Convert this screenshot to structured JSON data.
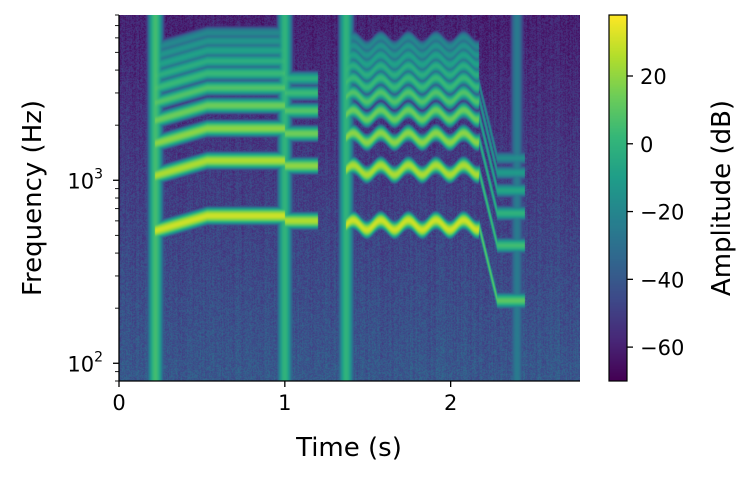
{
  "chart_data": {
    "type": "heatmap",
    "title": "",
    "xlabel": "Time (s)",
    "ylabel": "Frequency (Hz)",
    "xlim": [
      0,
      2.78
    ],
    "ylim": [
      80,
      8000
    ],
    "y_scale": "log",
    "x_ticks": [
      {
        "value": 0,
        "label": "0"
      },
      {
        "value": 1,
        "label": "1"
      },
      {
        "value": 2,
        "label": "2"
      }
    ],
    "y_ticks": [
      {
        "value": 100,
        "base": "10",
        "exp": "2"
      },
      {
        "value": 1000,
        "base": "10",
        "exp": "3"
      }
    ],
    "colorbar": {
      "label": "Amplitude (dB)",
      "colormap": "viridis",
      "range": [
        -70,
        38
      ],
      "ticks": [
        {
          "value": 20,
          "label": "20"
        },
        {
          "value": 0,
          "label": "0"
        },
        {
          "value": -20,
          "label": "−20"
        },
        {
          "value": -40,
          "label": "−40"
        },
        {
          "value": -60,
          "label": "−60"
        }
      ]
    },
    "background_level_db": -55,
    "onsets": [
      {
        "t": 0.22,
        "level_db": 5
      },
      {
        "t": 1.0,
        "level_db": 0
      },
      {
        "t": 1.37,
        "level_db": 0
      },
      {
        "t": 2.4,
        "level_db": -25
      }
    ],
    "notes": [
      {
        "t0": 0.22,
        "t1": 1.0,
        "f_start": 530,
        "f_end": 640,
        "vibrato": 0,
        "fundamental_db": 30,
        "harmonics": 10
      },
      {
        "t0": 1.0,
        "t1": 1.2,
        "f_start": 600,
        "f_end": 600,
        "vibrato": 0,
        "fundamental_db": 25,
        "harmonics": 6
      },
      {
        "t0": 1.37,
        "t1": 2.17,
        "f_start": 570,
        "f_end": 570,
        "vibrato": 0.06,
        "fundamental_db": 30,
        "harmonics": 10
      },
      {
        "t0": 2.17,
        "t1": 2.45,
        "f_start": 570,
        "f_end": 220,
        "vibrato": 0,
        "fundamental_db": 10,
        "harmonics": 6
      }
    ]
  }
}
